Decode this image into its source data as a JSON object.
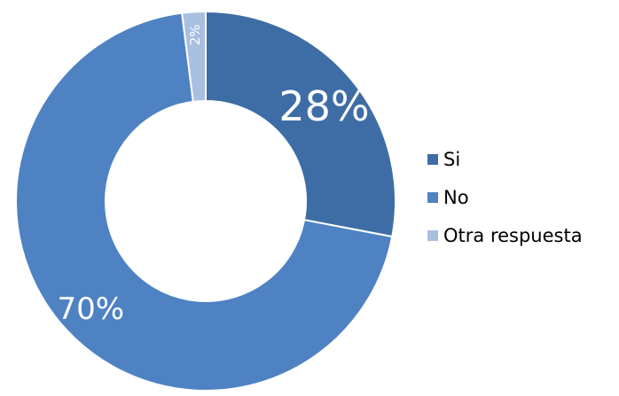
{
  "chart_data": {
    "type": "pie",
    "donut": true,
    "categories": [
      "Si",
      "No",
      "Otra respuesta"
    ],
    "values": [
      28,
      70,
      2
    ],
    "labels": [
      "28%",
      "70%",
      "2%"
    ],
    "colors": [
      "#3e6da6",
      "#4e82c3",
      "#a9bfe0"
    ],
    "legend_position": "right"
  }
}
